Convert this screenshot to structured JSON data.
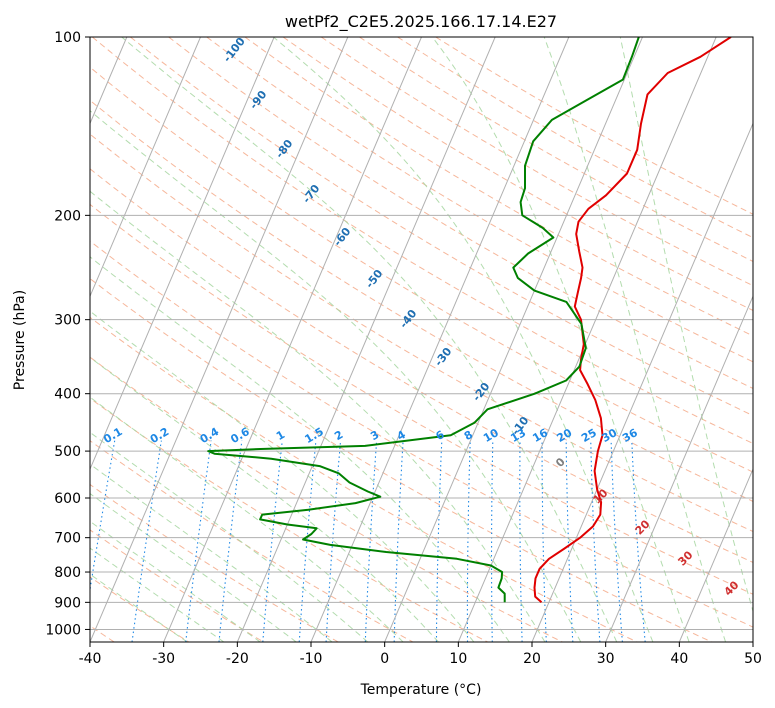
{
  "chart_data": {
    "type": "line",
    "title": "wetPf2_C2E5.2025.166.17.14.E27",
    "xlabel": "Temperature (°C)",
    "ylabel": "Pressure (hPa)",
    "xlim": [
      -40,
      50
    ],
    "ylim": [
      1050,
      100
    ],
    "y_scale": "log",
    "x_ticks": [
      -40,
      -30,
      -20,
      -10,
      0,
      10,
      20,
      30,
      40,
      50
    ],
    "y_ticks": [
      100,
      200,
      300,
      400,
      500,
      600,
      700,
      800,
      900,
      1000
    ],
    "grid": true,
    "series": [
      {
        "color": "#e00000",
        "points": [
          {
            "p": 900,
            "t": 19.0
          },
          {
            "p": 880,
            "t": 17.8
          },
          {
            "p": 850,
            "t": 17.2
          },
          {
            "p": 820,
            "t": 16.8
          },
          {
            "p": 790,
            "t": 16.8
          },
          {
            "p": 760,
            "t": 17.5
          },
          {
            "p": 730,
            "t": 19.0
          },
          {
            "p": 700,
            "t": 20.5
          },
          {
            "p": 670,
            "t": 21.6
          },
          {
            "p": 640,
            "t": 21.9
          },
          {
            "p": 610,
            "t": 21.3
          },
          {
            "p": 580,
            "t": 20.0
          },
          {
            "p": 540,
            "t": 18.6
          },
          {
            "p": 500,
            "t": 17.9
          },
          {
            "p": 470,
            "t": 17.6
          },
          {
            "p": 440,
            "t": 16.4
          },
          {
            "p": 410,
            "t": 14.6
          },
          {
            "p": 385,
            "t": 12.6
          },
          {
            "p": 365,
            "t": 10.8
          },
          {
            "p": 350,
            "t": 10.3
          },
          {
            "p": 330,
            "t": 9.8
          },
          {
            "p": 300,
            "t": 8.0
          },
          {
            "p": 285,
            "t": 6.4
          },
          {
            "p": 270,
            "t": 6.0
          },
          {
            "p": 255,
            "t": 5.6
          },
          {
            "p": 245,
            "t": 5.2
          },
          {
            "p": 230,
            "t": 3.8
          },
          {
            "p": 215,
            "t": 2.4
          },
          {
            "p": 205,
            "t": 2.0
          },
          {
            "p": 195,
            "t": 2.6
          },
          {
            "p": 185,
            "t": 4.2
          },
          {
            "p": 170,
            "t": 5.8
          },
          {
            "p": 155,
            "t": 5.8
          },
          {
            "p": 140,
            "t": 4.8
          },
          {
            "p": 125,
            "t": 4.0
          },
          {
            "p": 115,
            "t": 5.5
          },
          {
            "p": 108,
            "t": 9.0
          },
          {
            "p": 100,
            "t": 12.0
          }
        ]
      },
      {
        "color": "#008000",
        "points": [
          {
            "p": 900,
            "t": 14.0
          },
          {
            "p": 870,
            "t": 13.5
          },
          {
            "p": 850,
            "t": 12.3
          },
          {
            "p": 820,
            "t": 12.2
          },
          {
            "p": 800,
            "t": 11.9
          },
          {
            "p": 780,
            "t": 10.0
          },
          {
            "p": 760,
            "t": 5.0
          },
          {
            "p": 740,
            "t": -5.0
          },
          {
            "p": 720,
            "t": -13.0
          },
          {
            "p": 705,
            "t": -17.0
          },
          {
            "p": 690,
            "t": -16.2
          },
          {
            "p": 675,
            "t": -15.8
          },
          {
            "p": 665,
            "t": -20.0
          },
          {
            "p": 652,
            "t": -24.0
          },
          {
            "p": 640,
            "t": -24.0
          },
          {
            "p": 628,
            "t": -18.0
          },
          {
            "p": 612,
            "t": -12.0
          },
          {
            "p": 597,
            "t": -9.0
          },
          {
            "p": 585,
            "t": -11.0
          },
          {
            "p": 565,
            "t": -14.0
          },
          {
            "p": 545,
            "t": -16.0
          },
          {
            "p": 530,
            "t": -19.0
          },
          {
            "p": 515,
            "t": -26.0
          },
          {
            "p": 505,
            "t": -34.0
          },
          {
            "p": 500,
            "t": -35.0
          },
          {
            "p": 496,
            "t": -28.0
          },
          {
            "p": 490,
            "t": -14.0
          },
          {
            "p": 470,
            "t": -3.0
          },
          {
            "p": 448,
            "t": -0.5
          },
          {
            "p": 425,
            "t": 0.5
          },
          {
            "p": 400,
            "t": 6.0
          },
          {
            "p": 380,
            "t": 9.5
          },
          {
            "p": 360,
            "t": 10.5
          },
          {
            "p": 335,
            "t": 10.3
          },
          {
            "p": 305,
            "t": 8.3
          },
          {
            "p": 280,
            "t": 5.0
          },
          {
            "p": 268,
            "t": 0.0
          },
          {
            "p": 255,
            "t": -3.0
          },
          {
            "p": 245,
            "t": -4.2
          },
          {
            "p": 232,
            "t": -3.0
          },
          {
            "p": 218,
            "t": -0.5
          },
          {
            "p": 210,
            "t": -2.5
          },
          {
            "p": 200,
            "t": -6.0
          },
          {
            "p": 190,
            "t": -7.0
          },
          {
            "p": 180,
            "t": -7.2
          },
          {
            "p": 165,
            "t": -8.5
          },
          {
            "p": 150,
            "t": -8.8
          },
          {
            "p": 138,
            "t": -7.5
          },
          {
            "p": 128,
            "t": -4.0
          },
          {
            "p": 118,
            "t": -0.2
          },
          {
            "p": 108,
            "t": -0.3
          },
          {
            "p": 100,
            "t": -0.5
          }
        ]
      }
    ],
    "dry_adiabat_labels": [
      -100,
      -90,
      -80,
      -70,
      -60,
      -50,
      -40,
      -30,
      -20,
      -10
    ],
    "mixing_ratio_labels": [
      "0.1",
      "0.2",
      "0.4",
      "0.6",
      "1",
      "1.5",
      "2",
      "3",
      "4",
      "6",
      "8",
      "10",
      "13",
      "16",
      "20",
      "25",
      "30",
      "36"
    ],
    "moist_adiabat_labels": [
      "0",
      "10",
      "20",
      "30",
      "40"
    ],
    "colors": {
      "isotherm": "#b0b0b0",
      "isobar": "#b0b0b0",
      "dry_adiabat": "#f4a582",
      "moist_adiabat": "#a6d6a0",
      "mixing_ratio": "#1e88e5",
      "dry_label": "#1f6fb2",
      "moist_label": "#d03030",
      "zero_label": "#7f7f7f"
    }
  }
}
